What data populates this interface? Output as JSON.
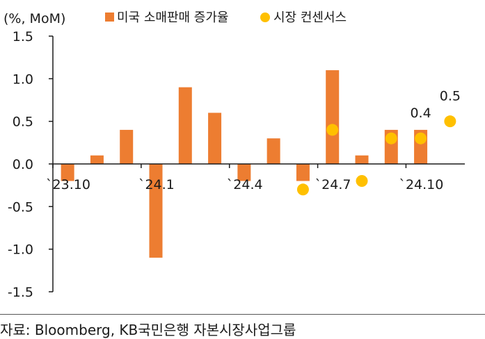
{
  "chart_data": {
    "type": "bar",
    "unit_label": "(%, MoM)",
    "ylim": [
      -1.5,
      1.5
    ],
    "yticks": [
      "1.5",
      "1.0",
      "0.5",
      "0.0",
      "-0.5",
      "-1.0",
      "-1.5"
    ],
    "ytick_values": [
      1.5,
      1.0,
      0.5,
      0.0,
      -0.5,
      -1.0,
      -1.5
    ],
    "categories": [
      "23.10",
      "23.11",
      "23.12",
      "24.1",
      "24.2",
      "24.3",
      "24.4",
      "24.5",
      "24.6",
      "24.7",
      "24.8",
      "24.9",
      "24.10",
      "24.11"
    ],
    "xtick_labels": [
      {
        "index": 0,
        "label": "`23.10"
      },
      {
        "index": 3,
        "label": "`24.1"
      },
      {
        "index": 6,
        "label": "`24.4"
      },
      {
        "index": 9,
        "label": "`24.7"
      },
      {
        "index": 12,
        "label": "`24.10"
      }
    ],
    "series": [
      {
        "name": "미국 소매판매 증가율",
        "type": "bar",
        "color": "#ED7D31",
        "values": [
          -0.2,
          0.1,
          0.4,
          -1.1,
          0.9,
          0.6,
          -0.2,
          0.3,
          -0.2,
          1.1,
          0.1,
          0.4,
          0.4,
          null
        ]
      },
      {
        "name": "시장 컨센서스",
        "type": "scatter",
        "color": "#FFC000",
        "values": [
          null,
          null,
          null,
          null,
          null,
          null,
          null,
          null,
          -0.3,
          0.4,
          -0.2,
          0.3,
          0.3,
          0.5
        ]
      }
    ],
    "annotations": [
      {
        "index": 12,
        "text": "0.4"
      },
      {
        "index": 13,
        "text": "0.5"
      }
    ]
  },
  "source": "자료: Bloomberg, KB국민은행 자본시장사업그룹"
}
